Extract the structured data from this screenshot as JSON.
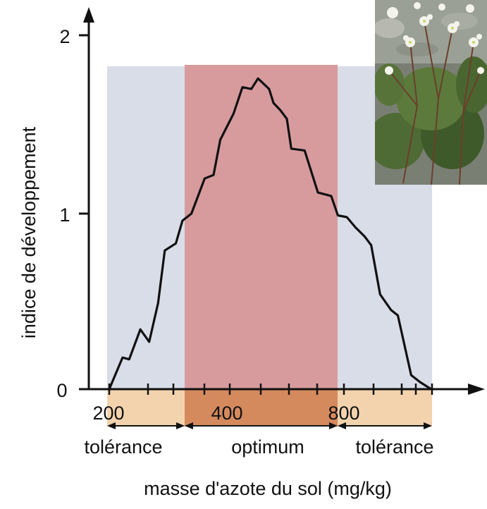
{
  "chart_data": {
    "type": "line",
    "title": "",
    "xlabel": "masse d'azote du sol (mg/kg)",
    "ylabel": "indice de développement",
    "x_tick_labels": [
      "200",
      "400",
      "800"
    ],
    "y_tick_labels": [
      "0",
      "1",
      "2"
    ],
    "ylim": [
      0,
      2
    ],
    "zones": [
      {
        "label": "tolérance",
        "color": "#d9dde8",
        "band_color": "#f3d3ae"
      },
      {
        "label": "optimum",
        "color": "#d79b9e",
        "band_color": "#d58a5e"
      },
      {
        "label": "tolérance",
        "color": "#d9dde8",
        "band_color": "#f3d3ae"
      }
    ],
    "series": [
      {
        "color": "#111111",
        "points": [
          [
            0.0,
            0.0
          ],
          [
            0.06,
            0.18
          ],
          [
            0.09,
            0.17
          ],
          [
            0.14,
            0.34
          ],
          [
            0.18,
            0.27
          ],
          [
            0.22,
            0.49
          ],
          [
            0.25,
            0.79
          ],
          [
            0.3,
            0.83
          ],
          [
            0.33,
            0.96
          ],
          [
            0.37,
            1.0
          ],
          [
            0.43,
            1.2
          ],
          [
            0.47,
            1.22
          ],
          [
            0.5,
            1.42
          ],
          [
            0.56,
            1.57
          ],
          [
            0.6,
            1.72
          ],
          [
            0.64,
            1.71
          ],
          [
            0.67,
            1.77
          ],
          [
            0.72,
            1.71
          ],
          [
            0.74,
            1.63
          ],
          [
            0.77,
            1.59
          ],
          [
            0.8,
            1.54
          ],
          [
            0.82,
            1.37
          ],
          [
            0.88,
            1.36
          ],
          [
            0.94,
            1.12
          ],
          [
            1.0,
            1.1
          ],
          [
            1.03,
            0.99
          ],
          [
            1.07,
            0.98
          ],
          [
            1.11,
            0.92
          ],
          [
            1.15,
            0.87
          ],
          [
            1.18,
            0.82
          ],
          [
            1.22,
            0.54
          ],
          [
            1.27,
            0.45
          ],
          [
            1.3,
            0.42
          ],
          [
            1.36,
            0.08
          ],
          [
            1.4,
            0.04
          ],
          [
            1.45,
            0.0
          ]
        ]
      }
    ]
  },
  "colors": {
    "axis": "#111111",
    "zone_tolerance": "#d9dde8",
    "zone_optimum": "#d79b9e"
  },
  "photo": {
    "icon": "flowering-plant-photo"
  }
}
